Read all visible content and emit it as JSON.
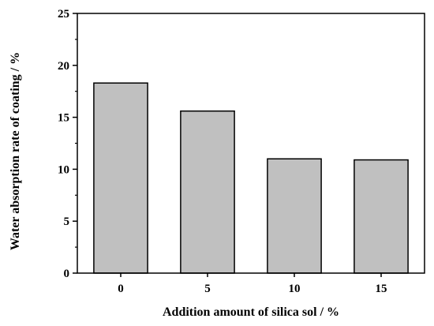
{
  "chart_data": {
    "type": "bar",
    "title": "",
    "xlabel": "Addition amount of silica sol / %",
    "ylabel": "Water absorption rate of coating / %",
    "categories": [
      "0",
      "5",
      "10",
      "15"
    ],
    "values": [
      18.3,
      15.6,
      11.0,
      10.9
    ],
    "ylim": [
      0,
      25
    ],
    "yticks": [
      "0",
      "5",
      "10",
      "15",
      "20",
      "25"
    ],
    "grid": false,
    "legend": "none",
    "bar_color": "#c0c0c0",
    "edge_color": "#000000"
  }
}
